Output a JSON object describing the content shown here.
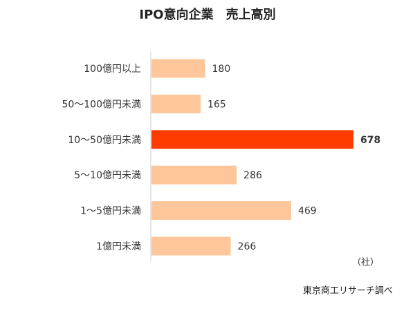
{
  "chart_data": {
    "type": "hbar",
    "title": "IPO意向企業　売上高別",
    "categories": [
      "100億円以上",
      "50～100億円未満",
      "10～50億円未満",
      "5～10億円未満",
      "1～5億円未満",
      "1億円未満"
    ],
    "values": [
      180,
      165,
      678,
      286,
      469,
      266
    ],
    "colors": [
      "#fdc79b",
      "#fdc79b",
      "#ff3c00",
      "#fdc79b",
      "#fdc79b",
      "#fdc79b"
    ],
    "unit": "（社）",
    "source": "東京商工リサーチ調べ"
  }
}
